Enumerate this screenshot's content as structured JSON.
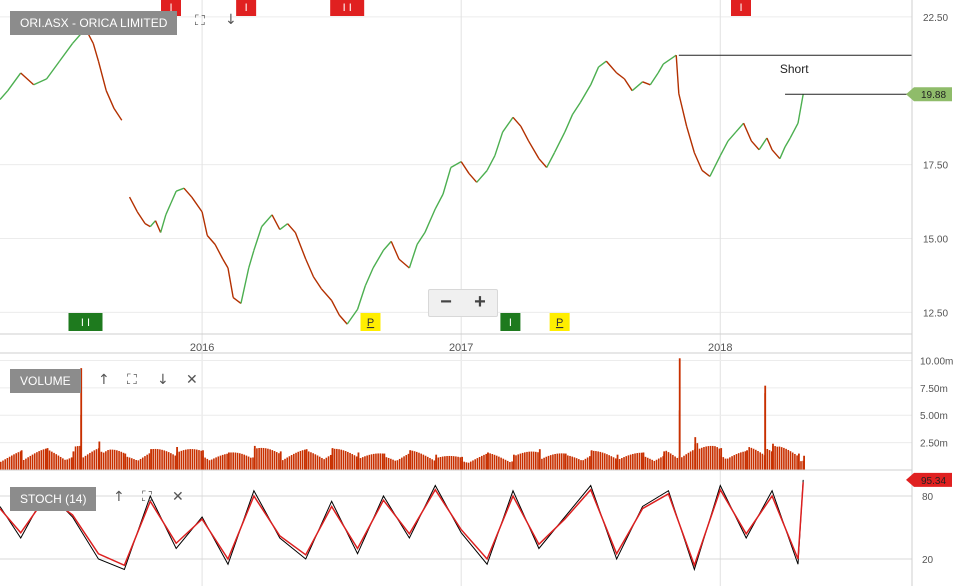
{
  "price_panel": {
    "title": "ORI.ASX - ORICA LIMITED",
    "y_ticks": [
      "22.50",
      "17.50",
      "15.00",
      "12.50"
    ],
    "last_price_label": "19.88",
    "annotation": "Short",
    "markers": [
      {
        "label": "I",
        "type": "red",
        "x_date": 2015.88
      },
      {
        "label": "I",
        "type": "red",
        "x_date": 2016.17
      },
      {
        "label": "I I",
        "type": "red",
        "x_date": 2016.56
      },
      {
        "label": "I",
        "type": "red",
        "x_date": 2018.08
      },
      {
        "label": "I I",
        "type": "green",
        "x_date": 2015.55
      },
      {
        "label": "P",
        "type": "yellow",
        "x_date": 2016.65
      },
      {
        "label": "I",
        "type": "green",
        "x_date": 2017.19
      },
      {
        "label": "P",
        "type": "yellow",
        "x_date": 2017.38
      }
    ],
    "colors": {
      "up": "#4caf50",
      "down": "#b33000",
      "last_price_bg": "#8fbc6a",
      "marker_red": "#e02020",
      "marker_green": "#1e7a1e",
      "marker_yellow": "#ffee00"
    }
  },
  "volume_panel": {
    "title": "VOLUME",
    "y_ticks": [
      "10.00m",
      "7.50m",
      "5.00m",
      "2.50m"
    ],
    "color": "#c83000"
  },
  "stoch_panel": {
    "title": "STOCH (14)",
    "y_ticks": [
      "80",
      "20"
    ],
    "last_value_label": "95.34",
    "colors": {
      "k": "#000000",
      "d": "#dd2020",
      "last_bg": "#e02020"
    }
  },
  "toolbar": {
    "zoom_out": "−",
    "zoom_in": "+",
    "icons": {
      "fullscreen": "⛶",
      "down": "↓",
      "up": "↑",
      "close": "✕"
    }
  },
  "chart_data": [
    {
      "type": "line",
      "title": "ORI.ASX - ORICA LIMITED",
      "x_ticks": [
        "2016",
        "2017",
        "2018"
      ],
      "xlim": [
        2015.22,
        2018.74
      ],
      "ylim": [
        11.8,
        22.9
      ],
      "series": [
        {
          "x": [
            2015.22,
            2015.25,
            2015.3,
            2015.35,
            2015.4,
            2015.45,
            2015.5,
            2015.55,
            2015.58,
            2015.6,
            2015.63,
            2015.66,
            2015.69,
            2015.72,
            2015.75,
            2015.78,
            2015.8,
            2015.82,
            2015.84,
            2015.86,
            2015.88,
            2015.9,
            2015.93,
            2015.96,
            2016.0,
            2016.02,
            2016.05,
            2016.08,
            2016.1,
            2016.12,
            2016.15,
            2016.18,
            2016.2,
            2016.23,
            2016.27,
            2016.3,
            2016.33,
            2016.36,
            2016.4,
            2016.43,
            2016.46,
            2016.5,
            2016.53,
            2016.56,
            2016.6,
            2016.63,
            2016.66,
            2016.7,
            2016.73,
            2016.76,
            2016.8,
            2016.83,
            2016.86,
            2016.9,
            2016.93,
            2016.96,
            2017.0,
            2017.03,
            2017.06,
            2017.1,
            2017.13,
            2017.16,
            2017.2,
            2017.23,
            2017.26,
            2017.3,
            2017.33,
            2017.36,
            2017.4,
            2017.43,
            2017.46,
            2017.5,
            2017.53,
            2017.56,
            2017.6,
            2017.63,
            2017.66,
            2017.7,
            2017.73,
            2017.76,
            2017.78,
            2017.83,
            2017.84,
            2017.87,
            2017.9,
            2017.93,
            2017.96,
            2018.0,
            2018.03,
            2018.06,
            2018.09,
            2018.12,
            2018.15,
            2018.18,
            2018.2,
            2018.23,
            2018.25,
            2018.27,
            2018.3,
            2018.32
          ],
          "y": [
            19.7,
            20.0,
            20.6,
            20.2,
            20.4,
            21.0,
            21.6,
            22.1,
            21.6,
            21.0,
            20.0,
            19.4,
            19.0,
            16.4,
            15.9,
            15.5,
            15.4,
            15.6,
            15.2,
            15.8,
            16.2,
            16.6,
            16.7,
            16.4,
            15.9,
            15.1,
            14.8,
            14.3,
            14.0,
            13.0,
            12.8,
            14.0,
            14.6,
            15.4,
            15.8,
            15.3,
            15.5,
            15.2,
            14.3,
            13.7,
            13.3,
            12.9,
            12.4,
            12.1,
            12.6,
            13.4,
            14.0,
            14.6,
            14.9,
            14.3,
            14.0,
            14.8,
            15.2,
            16.0,
            16.5,
            17.4,
            17.6,
            17.2,
            16.9,
            17.3,
            17.8,
            18.6,
            19.1,
            18.8,
            18.3,
            17.7,
            17.4,
            17.9,
            18.6,
            19.2,
            19.6,
            20.2,
            20.8,
            21.0,
            20.6,
            20.4,
            20.0,
            20.3,
            20.2,
            20.6,
            20.9,
            21.2,
            19.9,
            18.8,
            17.9,
            17.3,
            17.1,
            17.8,
            18.3,
            18.6,
            18.9,
            18.3,
            18.0,
            18.4,
            18.0,
            17.7,
            18.1,
            18.4,
            18.9,
            19.88
          ]
        }
      ]
    },
    {
      "type": "bar",
      "title": "VOLUME",
      "ylim": [
        0,
        10.5
      ],
      "y_unit": "m",
      "x": [
        2015.22,
        2015.3,
        2015.4,
        2015.5,
        2015.53,
        2015.6,
        2015.7,
        2015.8,
        2015.9,
        2016.0,
        2016.1,
        2016.2,
        2016.3,
        2016.4,
        2016.5,
        2016.6,
        2016.7,
        2016.8,
        2016.9,
        2017.0,
        2017.1,
        2017.2,
        2017.3,
        2017.4,
        2017.5,
        2017.6,
        2017.7,
        2017.78,
        2017.84,
        2017.9,
        2018.0,
        2018.1,
        2018.17,
        2018.2,
        2018.3,
        2018.32
      ],
      "values": [
        1.5,
        1.8,
        2.0,
        1.7,
        9.3,
        2.6,
        1.5,
        1.9,
        2.1,
        1.8,
        1.6,
        2.2,
        1.7,
        1.9,
        2.0,
        1.6,
        1.5,
        1.8,
        1.4,
        1.2,
        1.6,
        1.4,
        1.9,
        1.5,
        1.8,
        1.4,
        1.6,
        1.7,
        10.2,
        3.0,
        2.0,
        1.8,
        7.7,
        2.4,
        1.5,
        1.3
      ]
    },
    {
      "type": "line",
      "title": "STOCH (14)",
      "ylim": [
        0,
        100
      ],
      "series": [
        {
          "name": "%K",
          "x": [
            2015.22,
            2015.3,
            2015.4,
            2015.5,
            2015.6,
            2015.7,
            2015.8,
            2015.9,
            2016.0,
            2016.1,
            2016.2,
            2016.3,
            2016.4,
            2016.5,
            2016.6,
            2016.7,
            2016.8,
            2016.9,
            2017.0,
            2017.1,
            2017.2,
            2017.3,
            2017.4,
            2017.5,
            2017.6,
            2017.7,
            2017.8,
            2017.9,
            2018.0,
            2018.1,
            2018.2,
            2018.3,
            2018.32
          ],
          "values": [
            70,
            40,
            85,
            60,
            20,
            10,
            80,
            30,
            60,
            15,
            85,
            40,
            20,
            75,
            25,
            80,
            40,
            90,
            45,
            15,
            85,
            30,
            60,
            90,
            20,
            70,
            85,
            10,
            90,
            40,
            85,
            15,
            95.34
          ]
        },
        {
          "name": "%D",
          "x": [
            2015.22,
            2015.3,
            2015.4,
            2015.5,
            2015.6,
            2015.7,
            2015.8,
            2015.9,
            2016.0,
            2016.1,
            2016.2,
            2016.3,
            2016.4,
            2016.5,
            2016.6,
            2016.7,
            2016.8,
            2016.9,
            2017.0,
            2017.1,
            2017.2,
            2017.3,
            2017.4,
            2017.5,
            2017.6,
            2017.7,
            2017.8,
            2017.9,
            2018.0,
            2018.1,
            2018.2,
            2018.3,
            2018.32
          ],
          "values": [
            68,
            45,
            80,
            62,
            25,
            14,
            75,
            35,
            58,
            20,
            80,
            42,
            24,
            70,
            30,
            76,
            44,
            86,
            48,
            20,
            80,
            34,
            58,
            86,
            25,
            68,
            82,
            14,
            86,
            44,
            80,
            20,
            93
          ]
        }
      ]
    }
  ]
}
